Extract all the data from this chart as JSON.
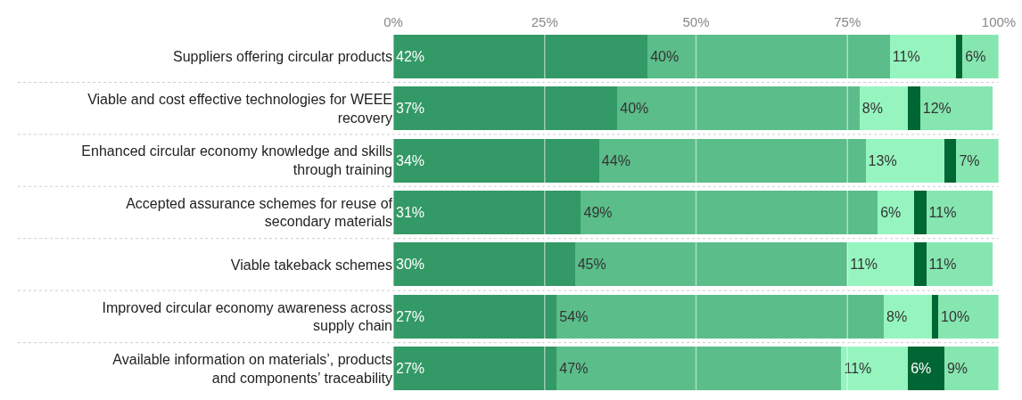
{
  "chart_data": {
    "type": "bar",
    "orientation": "horizontal",
    "stacked": true,
    "categories": [
      "Suppliers offering circular products",
      "Viable and cost effective technologies for WEEE recovery",
      "Enhanced circular economy knowledge and skills through training",
      "Accepted assurance schemes for reuse of secondary materials",
      "Viable takeback schemes",
      "Improved circular economy awareness across supply chain",
      "Available information on materials’, products and components’ traceability"
    ],
    "series": [
      {
        "color": "#339966",
        "values": [
          42,
          37,
          34,
          31,
          30,
          27,
          27
        ],
        "value_labels": [
          "42%",
          "37%",
          "34%",
          "31%",
          "30%",
          "27%",
          "27%"
        ]
      },
      {
        "color": "#5bbd8a",
        "values": [
          40,
          40,
          44,
          49,
          45,
          54,
          47
        ],
        "value_labels": [
          "40%",
          "40%",
          "44%",
          "49%",
          "45%",
          "54%",
          "47%"
        ]
      },
      {
        "color": "#96f5bf",
        "values": [
          11,
          8,
          13,
          6,
          11,
          8,
          11
        ],
        "value_labels": [
          "11%",
          "8%",
          "13%",
          "6%",
          "11%",
          "8%",
          "11%"
        ]
      },
      {
        "color": "#006633",
        "values": [
          1,
          2,
          2,
          2,
          2,
          1,
          6
        ],
        "value_labels": [
          null,
          null,
          null,
          null,
          null,
          null,
          "6%"
        ]
      },
      {
        "color": "#86e6b0",
        "values": [
          6,
          12,
          7,
          11,
          11,
          10,
          9
        ],
        "value_labels": [
          "6%",
          "12%",
          "7%",
          "11%",
          "11%",
          "10%",
          "9%"
        ]
      }
    ],
    "xlim": [
      0,
      100
    ],
    "xticks": [
      {
        "value": 0,
        "label": "0%"
      },
      {
        "value": 25,
        "label": "25%"
      },
      {
        "value": 50,
        "label": "50%"
      },
      {
        "value": 75,
        "label": "75%"
      },
      {
        "value": 100,
        "label": "100%"
      }
    ],
    "grid": "x"
  }
}
